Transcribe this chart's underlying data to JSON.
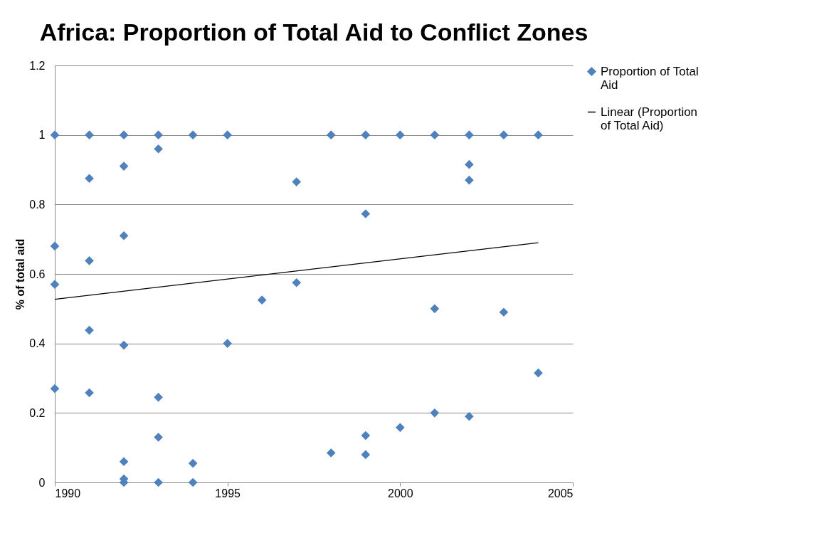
{
  "chart_data": {
    "type": "scatter",
    "title": "Africa: Proportion of Total Aid to Conflict Zones",
    "ylabel": "% of total aid",
    "series": [
      {
        "name": "Proportion of Total Aid",
        "color": "#4f81bd",
        "marker": "diamond",
        "x": [
          1990,
          1990,
          1990,
          1990,
          1991,
          1991,
          1991,
          1991,
          1991,
          1992,
          1992,
          1992,
          1992,
          1992,
          1992,
          1992,
          1993,
          1993,
          1993,
          1993,
          1993,
          1994,
          1994,
          1994,
          1995,
          1995,
          1996,
          1997,
          1997,
          1998,
          1998,
          1999,
          1999,
          1999,
          1999,
          2000,
          2000,
          2001,
          2001,
          2001,
          2002,
          2002,
          2002,
          2002,
          2003,
          2003,
          2004,
          2004
        ],
        "values": [
          1,
          0.68,
          0.57,
          0.27,
          1,
          0.875,
          0.638,
          0.438,
          0.258,
          1,
          0.91,
          0.71,
          0.395,
          0.06,
          0.01,
          0,
          1,
          0.96,
          0.245,
          0.13,
          0,
          1,
          0.055,
          0,
          1,
          0.4,
          0.525,
          0.865,
          0.575,
          1,
          0.085,
          1,
          0.773,
          0.135,
          0.08,
          1,
          0.158,
          1,
          0.5,
          0.2,
          1,
          0.915,
          0.87,
          0.19,
          1,
          0.49,
          1,
          0.315
        ]
      },
      {
        "name": "Linear (Proportion of Total Aid)",
        "type": "line",
        "color": "#000000",
        "line_style": "solid",
        "x": [
          1990,
          2004
        ],
        "values": [
          0.527,
          0.69
        ]
      }
    ],
    "xlim": [
      1990,
      2005
    ],
    "xticks": [
      1990,
      1995,
      2000,
      2005
    ],
    "ylim": [
      0,
      1.2
    ],
    "yticks": [
      0,
      0.2,
      0.4,
      0.6,
      0.8,
      1,
      1.2
    ],
    "grid": "y",
    "legend": "right"
  }
}
